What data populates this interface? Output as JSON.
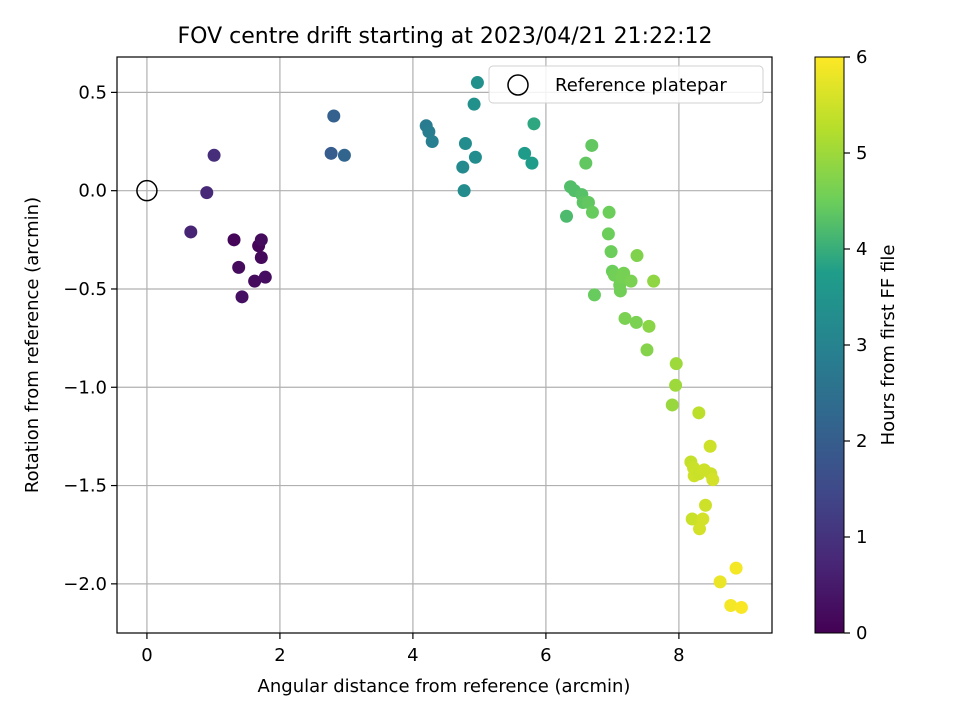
{
  "chart_data": {
    "type": "scatter",
    "title": "FOV centre drift starting at 2023/04/21 21:22:12",
    "xlabel": "Angular distance from reference (arcmin)",
    "ylabel": "Rotation from reference (arcmin)",
    "xlim": [
      -0.45,
      9.4
    ],
    "ylim": [
      -2.25,
      0.68
    ],
    "xticks": [
      0,
      2,
      4,
      6,
      8
    ],
    "yticks": [
      0.5,
      0.0,
      -0.5,
      -1.0,
      -1.5,
      -2.0
    ],
    "xtick_labels": [
      "0",
      "2",
      "4",
      "6",
      "8"
    ],
    "ytick_labels": [
      "0.5",
      "0.0",
      "−0.5",
      "−1.0",
      "−1.5",
      "−2.0"
    ],
    "grid": true,
    "legend": {
      "label": "Reference platepar",
      "location": "top-right"
    },
    "reference_point": {
      "x": 0.0,
      "y": 0.0
    },
    "colorbar": {
      "label": "Hours from first FF file",
      "range": [
        0,
        6
      ],
      "ticks": [
        0,
        1,
        2,
        3,
        4,
        5,
        6
      ],
      "tick_labels": [
        "0",
        "1",
        "2",
        "3",
        "4",
        "5",
        "6"
      ],
      "colormap": "viridis"
    },
    "colormap_stops": [
      "#440154",
      "#482777",
      "#3f4a8a",
      "#31678e",
      "#26838f",
      "#1f9d8a",
      "#6cce5a",
      "#b6de2b",
      "#fee825"
    ],
    "points": [
      {
        "x": 0.66,
        "y": -0.21,
        "h": 0.7
      },
      {
        "x": 0.9,
        "y": -0.01,
        "h": 0.8
      },
      {
        "x": 1.01,
        "y": 0.18,
        "h": 0.9
      },
      {
        "x": 1.31,
        "y": -0.25,
        "h": 0.1
      },
      {
        "x": 1.38,
        "y": -0.39,
        "h": 0.2
      },
      {
        "x": 1.43,
        "y": -0.54,
        "h": 0.3
      },
      {
        "x": 1.62,
        "y": -0.46,
        "h": 0.2
      },
      {
        "x": 1.68,
        "y": -0.28,
        "h": 0.1
      },
      {
        "x": 1.72,
        "y": -0.25,
        "h": 0.2
      },
      {
        "x": 1.72,
        "y": -0.34,
        "h": 0.15
      },
      {
        "x": 1.78,
        "y": -0.44,
        "h": 0.25
      },
      {
        "x": 2.77,
        "y": 0.19,
        "h": 2.0
      },
      {
        "x": 2.81,
        "y": 0.38,
        "h": 2.1
      },
      {
        "x": 2.97,
        "y": 0.18,
        "h": 2.2
      },
      {
        "x": 4.2,
        "y": 0.33,
        "h": 2.8
      },
      {
        "x": 4.24,
        "y": 0.3,
        "h": 2.85
      },
      {
        "x": 4.29,
        "y": 0.25,
        "h": 2.9
      },
      {
        "x": 4.75,
        "y": 0.12,
        "h": 3.2
      },
      {
        "x": 4.77,
        "y": 0.0,
        "h": 3.25
      },
      {
        "x": 4.79,
        "y": 0.24,
        "h": 3.3
      },
      {
        "x": 4.92,
        "y": 0.44,
        "h": 3.4
      },
      {
        "x": 4.94,
        "y": 0.17,
        "h": 3.3
      },
      {
        "x": 4.97,
        "y": 0.55,
        "h": 3.4
      },
      {
        "x": 5.68,
        "y": 0.19,
        "h": 3.7
      },
      {
        "x": 5.79,
        "y": 0.14,
        "h": 3.75
      },
      {
        "x": 5.82,
        "y": 0.34,
        "h": 3.9
      },
      {
        "x": 6.31,
        "y": -0.13,
        "h": 4.2
      },
      {
        "x": 6.37,
        "y": 0.02,
        "h": 4.25
      },
      {
        "x": 6.43,
        "y": 0.0,
        "h": 4.25
      },
      {
        "x": 6.54,
        "y": -0.02,
        "h": 4.3
      },
      {
        "x": 6.56,
        "y": -0.06,
        "h": 4.35
      },
      {
        "x": 6.6,
        "y": 0.14,
        "h": 4.4
      },
      {
        "x": 6.64,
        "y": -0.06,
        "h": 4.4
      },
      {
        "x": 6.69,
        "y": 0.23,
        "h": 4.4
      },
      {
        "x": 6.7,
        "y": -0.11,
        "h": 4.45
      },
      {
        "x": 6.73,
        "y": -0.53,
        "h": 4.45
      },
      {
        "x": 6.94,
        "y": -0.22,
        "h": 4.5
      },
      {
        "x": 6.95,
        "y": -0.11,
        "h": 4.5
      },
      {
        "x": 6.98,
        "y": -0.31,
        "h": 4.5
      },
      {
        "x": 7.0,
        "y": -0.41,
        "h": 4.5
      },
      {
        "x": 7.03,
        "y": -0.43,
        "h": 4.55
      },
      {
        "x": 7.11,
        "y": -0.48,
        "h": 4.55
      },
      {
        "x": 7.12,
        "y": -0.51,
        "h": 4.55
      },
      {
        "x": 7.14,
        "y": -0.44,
        "h": 4.6
      },
      {
        "x": 7.17,
        "y": -0.42,
        "h": 4.6
      },
      {
        "x": 7.19,
        "y": -0.65,
        "h": 4.65
      },
      {
        "x": 7.28,
        "y": -0.46,
        "h": 4.65
      },
      {
        "x": 7.36,
        "y": -0.67,
        "h": 4.65
      },
      {
        "x": 7.37,
        "y": -0.33,
        "h": 4.7
      },
      {
        "x": 7.52,
        "y": -0.81,
        "h": 4.75
      },
      {
        "x": 7.55,
        "y": -0.69,
        "h": 4.8
      },
      {
        "x": 7.62,
        "y": -0.46,
        "h": 4.85
      },
      {
        "x": 7.9,
        "y": -1.09,
        "h": 4.95
      },
      {
        "x": 7.95,
        "y": -0.99,
        "h": 5.0
      },
      {
        "x": 7.96,
        "y": -0.88,
        "h": 5.0
      },
      {
        "x": 8.18,
        "y": -1.38,
        "h": 5.4
      },
      {
        "x": 8.2,
        "y": -1.67,
        "h": 5.45
      },
      {
        "x": 8.22,
        "y": -1.41,
        "h": 5.45
      },
      {
        "x": 8.23,
        "y": -1.45,
        "h": 5.5
      },
      {
        "x": 8.3,
        "y": -1.44,
        "h": 5.45
      },
      {
        "x": 8.3,
        "y": -1.13,
        "h": 5.3
      },
      {
        "x": 8.31,
        "y": -1.72,
        "h": 5.55
      },
      {
        "x": 8.36,
        "y": -1.67,
        "h": 5.55
      },
      {
        "x": 8.38,
        "y": -1.42,
        "h": 5.5
      },
      {
        "x": 8.4,
        "y": -1.6,
        "h": 5.5
      },
      {
        "x": 8.47,
        "y": -1.3,
        "h": 5.5
      },
      {
        "x": 8.48,
        "y": -1.44,
        "h": 5.5
      },
      {
        "x": 8.51,
        "y": -1.47,
        "h": 5.55
      },
      {
        "x": 8.62,
        "y": -1.99,
        "h": 5.8
      },
      {
        "x": 8.78,
        "y": -2.11,
        "h": 5.9
      },
      {
        "x": 8.86,
        "y": -1.92,
        "h": 5.9
      },
      {
        "x": 8.94,
        "y": -2.12,
        "h": 5.95
      }
    ]
  }
}
